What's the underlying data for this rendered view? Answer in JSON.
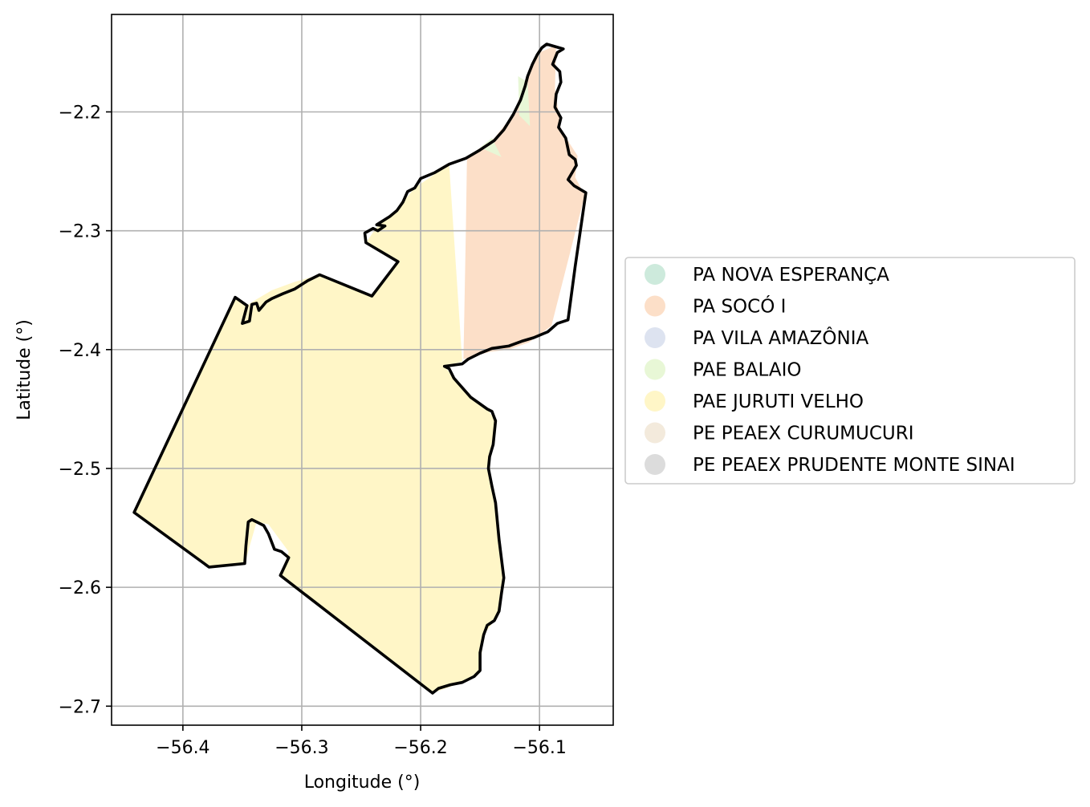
{
  "chart_data": {
    "type": "map",
    "xlabel": "Longitude (°)",
    "ylabel": "Latitude (°)",
    "xlim": [
      -56.46,
      -56.038
    ],
    "ylim": [
      -2.716,
      -2.118
    ],
    "grid": true,
    "legend_placement": "center-right (outside)",
    "x_ticks": [
      {
        "value": -56.4,
        "label": "−56.4"
      },
      {
        "value": -56.3,
        "label": "−56.3"
      },
      {
        "value": -56.2,
        "label": "−56.2"
      },
      {
        "value": -56.1,
        "label": "−56.1"
      }
    ],
    "y_ticks": [
      {
        "value": -2.2,
        "label": "−2.2"
      },
      {
        "value": -2.3,
        "label": "−2.3"
      },
      {
        "value": -2.4,
        "label": "−2.4"
      },
      {
        "value": -2.5,
        "label": "−2.5"
      },
      {
        "value": -2.6,
        "label": "−2.6"
      },
      {
        "value": -2.7,
        "label": "−2.7"
      }
    ],
    "legend": [
      {
        "label": "PA NOVA ESPERANÇA",
        "color": "#cdeadc"
      },
      {
        "label": "PA SOCÓ I",
        "color": "#fcdfc8"
      },
      {
        "label": "PA VILA AMAZÔNIA",
        "color": "#dde3f0"
      },
      {
        "label": "PAE BALAIO",
        "color": "#e8f7d6"
      },
      {
        "label": "PAE JURUTI VELHO",
        "color": "#fff6c7"
      },
      {
        "label": "PE PEAEX CURUMUCURI",
        "color": "#f3eadc"
      },
      {
        "label": "PE PEAEX PRUDENTE MONTE SINAI",
        "color": "#dcdcdc"
      }
    ],
    "regions": [
      {
        "name": "PAE JURUTI VELHO",
        "color": "#fff6c7",
        "coords": [
          [
            -56.441,
            -2.537
          ],
          [
            -56.356,
            -2.356
          ],
          [
            -56.346,
            -2.363
          ],
          [
            -56.342,
            -2.36
          ],
          [
            -56.325,
            -2.35
          ],
          [
            -56.306,
            -2.343
          ],
          [
            -56.285,
            -2.337
          ],
          [
            -56.241,
            -2.355
          ],
          [
            -56.219,
            -2.326
          ],
          [
            -56.246,
            -2.31
          ],
          [
            -56.237,
            -2.297
          ],
          [
            -56.226,
            -2.288
          ],
          [
            -56.215,
            -2.276
          ],
          [
            -56.205,
            -2.264
          ],
          [
            -56.176,
            -2.244
          ],
          [
            -56.165,
            -2.41
          ],
          [
            -56.18,
            -2.414
          ],
          [
            -56.172,
            -2.424
          ],
          [
            -56.158,
            -2.44
          ],
          [
            -56.144,
            -2.45
          ],
          [
            -56.137,
            -2.46
          ],
          [
            -56.142,
            -2.49
          ],
          [
            -56.143,
            -2.5
          ],
          [
            -56.137,
            -2.529
          ],
          [
            -56.13,
            -2.592
          ],
          [
            -56.134,
            -2.62
          ],
          [
            -56.138,
            -2.628
          ],
          [
            -56.147,
            -2.64
          ],
          [
            -56.15,
            -2.67
          ],
          [
            -56.165,
            -2.68
          ],
          [
            -56.19,
            -2.689
          ],
          [
            -56.318,
            -2.59
          ],
          [
            -56.311,
            -2.57
          ],
          [
            -56.328,
            -2.547
          ],
          [
            -56.338,
            -2.545
          ],
          [
            -56.348,
            -2.58
          ],
          [
            -56.378,
            -2.583
          ],
          [
            -56.441,
            -2.537
          ]
        ]
      },
      {
        "name": "PA SOCÓ I",
        "color": "#fcdfc8",
        "coords": [
          [
            -56.161,
            -2.238
          ],
          [
            -56.138,
            -2.222
          ],
          [
            -56.122,
            -2.202
          ],
          [
            -56.114,
            -2.18
          ],
          [
            -56.1,
            -2.15
          ],
          [
            -56.086,
            -2.144
          ],
          [
            -56.087,
            -2.18
          ],
          [
            -56.082,
            -2.215
          ],
          [
            -56.068,
            -2.237
          ],
          [
            -56.07,
            -2.255
          ],
          [
            -56.062,
            -2.27
          ],
          [
            -56.09,
            -2.38
          ],
          [
            -56.109,
            -2.394
          ],
          [
            -56.126,
            -2.4
          ],
          [
            -56.142,
            -2.402
          ],
          [
            -56.164,
            -2.408
          ],
          [
            -56.162,
            -2.3
          ]
        ]
      },
      {
        "name": "PAE BALAIO",
        "color": "#e8f7d6",
        "coords": [
          [
            -56.118,
            -2.17
          ],
          [
            -56.11,
            -2.175
          ],
          [
            -56.108,
            -2.212
          ],
          [
            -56.117,
            -2.203
          ]
        ]
      },
      {
        "name": "PAE BALAIO",
        "color": "#e8f7d6",
        "coords": [
          [
            -56.15,
            -2.23
          ],
          [
            -56.14,
            -2.222
          ],
          [
            -56.132,
            -2.238
          ]
        ]
      }
    ],
    "boundary": [
      [
        -56.441,
        -2.537
      ],
      [
        -56.356,
        -2.356
      ],
      [
        -56.346,
        -2.363
      ],
      [
        -56.35,
        -2.378
      ],
      [
        -56.344,
        -2.376
      ],
      [
        -56.342,
        -2.362
      ],
      [
        -56.338,
        -2.361
      ],
      [
        -56.336,
        -2.367
      ],
      [
        -56.33,
        -2.36
      ],
      [
        -56.325,
        -2.357
      ],
      [
        -56.316,
        -2.353
      ],
      [
        -56.306,
        -2.349
      ],
      [
        -56.295,
        -2.342
      ],
      [
        -56.285,
        -2.337
      ],
      [
        -56.241,
        -2.355
      ],
      [
        -56.219,
        -2.326
      ],
      [
        -56.246,
        -2.31
      ],
      [
        -56.247,
        -2.302
      ],
      [
        -56.24,
        -2.298
      ],
      [
        -56.236,
        -2.3
      ],
      [
        -56.23,
        -2.296
      ],
      [
        -56.237,
        -2.295
      ],
      [
        -56.226,
        -2.288
      ],
      [
        -56.22,
        -2.283
      ],
      [
        -56.215,
        -2.276
      ],
      [
        -56.211,
        -2.267
      ],
      [
        -56.205,
        -2.264
      ],
      [
        -56.2,
        -2.256
      ],
      [
        -56.188,
        -2.251
      ],
      [
        -56.176,
        -2.244
      ],
      [
        -56.162,
        -2.239
      ],
      [
        -56.15,
        -2.232
      ],
      [
        -56.138,
        -2.224
      ],
      [
        -56.13,
        -2.215
      ],
      [
        -56.122,
        -2.202
      ],
      [
        -56.116,
        -2.19
      ],
      [
        -56.112,
        -2.178
      ],
      [
        -56.11,
        -2.17
      ],
      [
        -56.106,
        -2.16
      ],
      [
        -56.102,
        -2.152
      ],
      [
        -56.098,
        -2.146
      ],
      [
        -56.094,
        -2.143
      ],
      [
        -56.087,
        -2.145
      ],
      [
        -56.08,
        -2.147
      ],
      [
        -56.085,
        -2.15
      ],
      [
        -56.089,
        -2.16
      ],
      [
        -56.083,
        -2.166
      ],
      [
        -56.082,
        -2.175
      ],
      [
        -56.086,
        -2.185
      ],
      [
        -56.087,
        -2.196
      ],
      [
        -56.082,
        -2.205
      ],
      [
        -56.084,
        -2.213
      ],
      [
        -56.078,
        -2.222
      ],
      [
        -56.075,
        -2.236
      ],
      [
        -56.07,
        -2.24
      ],
      [
        -56.069,
        -2.245
      ],
      [
        -56.076,
        -2.257
      ],
      [
        -56.071,
        -2.262
      ],
      [
        -56.061,
        -2.268
      ],
      [
        -56.07,
        -2.33
      ],
      [
        -56.076,
        -2.375
      ],
      [
        -56.085,
        -2.378
      ],
      [
        -56.093,
        -2.385
      ],
      [
        -56.105,
        -2.39
      ],
      [
        -56.115,
        -2.393
      ],
      [
        -56.126,
        -2.397
      ],
      [
        -56.14,
        -2.399
      ],
      [
        -56.15,
        -2.403
      ],
      [
        -56.16,
        -2.408
      ],
      [
        -56.165,
        -2.412
      ],
      [
        -56.18,
        -2.414
      ],
      [
        -56.176,
        -2.416
      ],
      [
        -56.172,
        -2.424
      ],
      [
        -56.158,
        -2.44
      ],
      [
        -56.144,
        -2.45
      ],
      [
        -56.14,
        -2.452
      ],
      [
        -56.137,
        -2.46
      ],
      [
        -56.138,
        -2.47
      ],
      [
        -56.139,
        -2.48
      ],
      [
        -56.142,
        -2.49
      ],
      [
        -56.143,
        -2.5
      ],
      [
        -56.14,
        -2.515
      ],
      [
        -56.137,
        -2.529
      ],
      [
        -56.134,
        -2.56
      ],
      [
        -56.13,
        -2.592
      ],
      [
        -56.132,
        -2.605
      ],
      [
        -56.134,
        -2.62
      ],
      [
        -56.138,
        -2.628
      ],
      [
        -56.144,
        -2.632
      ],
      [
        -56.147,
        -2.64
      ],
      [
        -56.15,
        -2.655
      ],
      [
        -56.15,
        -2.67
      ],
      [
        -56.155,
        -2.675
      ],
      [
        -56.165,
        -2.68
      ],
      [
        -56.175,
        -2.682
      ],
      [
        -56.185,
        -2.685
      ],
      [
        -56.19,
        -2.689
      ],
      [
        -56.318,
        -2.59
      ],
      [
        -56.311,
        -2.575
      ],
      [
        -56.317,
        -2.57
      ],
      [
        -56.323,
        -2.568
      ],
      [
        -56.328,
        -2.555
      ],
      [
        -56.332,
        -2.548
      ],
      [
        -56.338,
        -2.545
      ],
      [
        -56.342,
        -2.543
      ],
      [
        -56.345,
        -2.545
      ],
      [
        -56.347,
        -2.565
      ],
      [
        -56.348,
        -2.58
      ],
      [
        -56.378,
        -2.583
      ],
      [
        -56.441,
        -2.537
      ]
    ]
  }
}
